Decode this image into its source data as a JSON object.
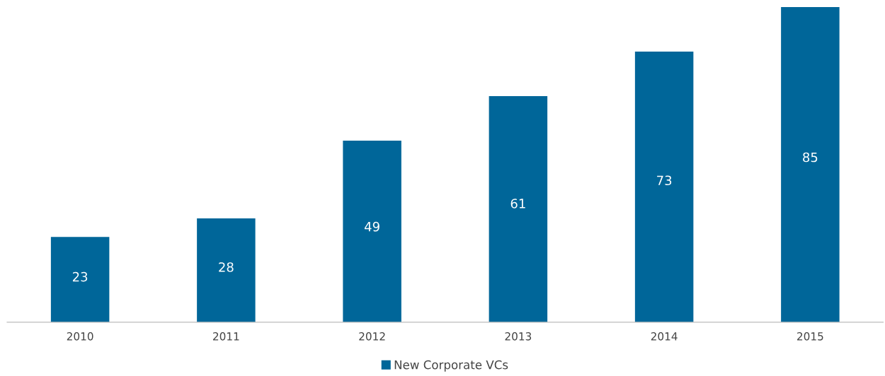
{
  "chart_data": {
    "type": "bar",
    "categories": [
      "2010",
      "2011",
      "2012",
      "2013",
      "2014",
      "2015"
    ],
    "series": [
      {
        "name": "New Corporate VCs",
        "color": "#006699",
        "values": [
          23,
          28,
          49,
          61,
          73,
          85
        ]
      }
    ],
    "data_labels": true,
    "legend": "bottom",
    "grid": false
  }
}
